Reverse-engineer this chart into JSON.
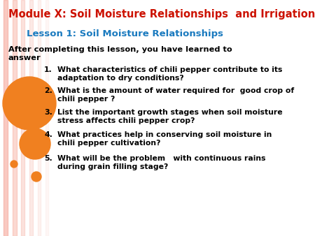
{
  "bg_color": "#ffffff",
  "title": "Module X: Soil Moisture Relationships  and Irrigation",
  "title_color": "#cc1100",
  "subtitle": "Lesson 1: Soil Moisture Relationships",
  "subtitle_color": "#1a7abf",
  "intro": "After completing this lesson, you have learned to\nanswer",
  "intro_color": "#000000",
  "items": [
    "What characteristics of chili pepper contribute to its\nadaptation to dry conditions?",
    "What is the amount of water required for  good crop of\nchili pepper ?",
    "List the important growth stages when soil moisture\nstress affects chili pepper crop?",
    "What practices help in conserving soil moisture in\nchili pepper cultivation?",
    "What will be the problem   with continuous rains\nduring grain filling stage?"
  ],
  "item_color": "#000000",
  "orange_color": "#f08020",
  "stripe_color": "#f5a090",
  "stripe_positions": [
    5,
    18,
    30,
    42,
    54,
    65
  ],
  "stripe_widths": [
    6,
    6,
    5,
    5,
    4,
    4
  ],
  "stripe_alphas": [
    0.55,
    0.4,
    0.3,
    0.22,
    0.13,
    0.08
  ]
}
